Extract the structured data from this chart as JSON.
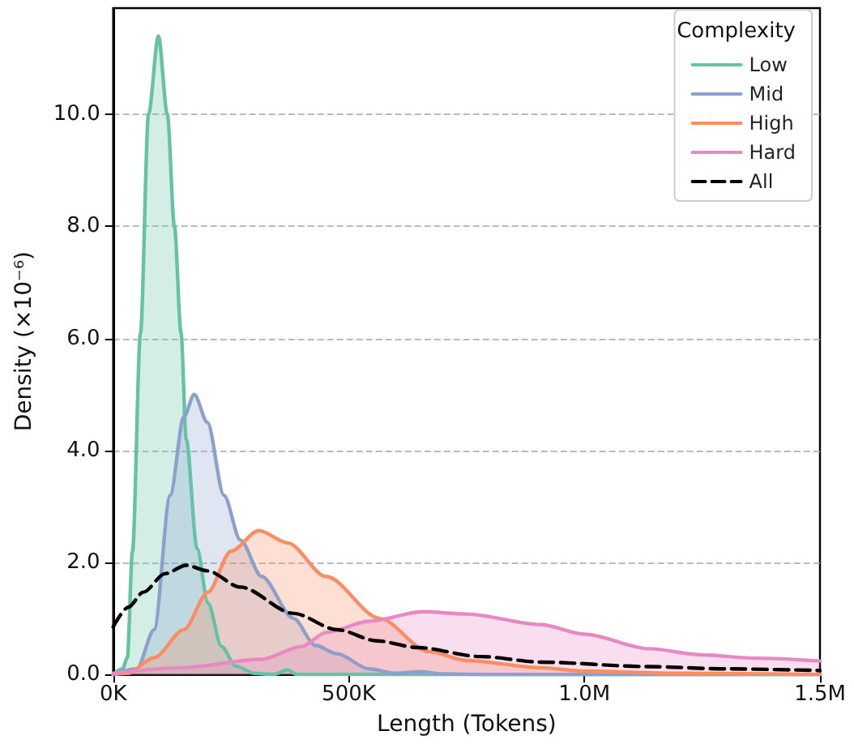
{
  "chart_data": {
    "type": "area",
    "xlabel": "Length (Tokens)",
    "ylabel": "Density (×10⁻⁶)",
    "legend_title": "Complexity",
    "legend": "top right",
    "grid": "y",
    "marker": "none",
    "xlim": [
      0,
      1500000
    ],
    "xticks": [
      {
        "value": 0,
        "label": "0K"
      },
      {
        "value": 500000,
        "label": "500K"
      },
      {
        "value": 1000000,
        "label": "1.0M"
      },
      {
        "value": 1500000,
        "label": "1.5M"
      }
    ],
    "ylim": [
      0,
      11.9
    ],
    "yticks": [
      {
        "value": 0,
        "label": "0.0"
      },
      {
        "value": 2,
        "label": "2.0"
      },
      {
        "value": 4,
        "label": "4.0"
      },
      {
        "value": 6,
        "label": "6.0"
      },
      {
        "value": 8,
        "label": "8.0"
      },
      {
        "value": 10,
        "label": "10.0"
      }
    ],
    "series": [
      {
        "name": "Low",
        "color": "#66c2a5",
        "x": [
          0,
          20000,
          30000,
          41000,
          58000,
          75000,
          96000,
          115000,
          130000,
          144000,
          155000,
          178000,
          201000,
          230000,
          260000,
          300000,
          340000,
          370000,
          390000,
          500000,
          1000000,
          1500000
        ],
        "values": [
          0,
          0.1,
          0.3,
          2.2,
          6.1,
          10.0,
          11.4,
          10.0,
          8.0,
          6.1,
          4.2,
          2.25,
          1.28,
          0.5,
          0.15,
          0.02,
          0,
          0.08,
          0,
          0,
          0,
          0
        ]
      },
      {
        "name": "Mid",
        "color": "#8da0cb",
        "x": [
          0,
          50000,
          87000,
          121000,
          150000,
          172000,
          200000,
          235000,
          270000,
          315000,
          383000,
          429000,
          475000,
          543000,
          600000,
          650000,
          700000,
          800000,
          1500000
        ],
        "values": [
          0,
          0.1,
          0.8,
          3.2,
          4.6,
          5.0,
          4.5,
          3.2,
          2.4,
          1.75,
          1.0,
          0.52,
          0.37,
          0.1,
          0.02,
          0.05,
          0.01,
          0,
          0
        ]
      },
      {
        "name": "High",
        "color": "#fc8d62",
        "x": [
          0,
          30000,
          87000,
          150000,
          201000,
          250000,
          309000,
          370000,
          452000,
          566000,
          669000,
          750000,
          908000,
          1000000,
          1200000,
          1500000
        ],
        "values": [
          0,
          0.02,
          0.3,
          0.8,
          1.47,
          2.2,
          2.57,
          2.35,
          1.75,
          1.0,
          0.41,
          0.25,
          0.12,
          0.06,
          0.02,
          0
        ]
      },
      {
        "name": "Hard",
        "color": "#e78ac3",
        "x": [
          0,
          144000,
          315000,
          400000,
          452000,
          543000,
          657000,
          750000,
          908000,
          1000000,
          1137000,
          1250000,
          1365000,
          1500000
        ],
        "values": [
          0.02,
          0.12,
          0.27,
          0.5,
          0.75,
          0.95,
          1.12,
          1.08,
          0.89,
          0.72,
          0.46,
          0.35,
          0.29,
          0.24
        ]
      },
      {
        "name": "All",
        "color": "#000000",
        "type": "line",
        "line_style": "dashed",
        "x": [
          0,
          32000,
          64000,
          110000,
          155000,
          200000,
          270000,
          383000,
          475000,
          560000,
          646000,
          780000,
          908000,
          1137000,
          1300000,
          1500000
        ],
        "values": [
          0.85,
          1.2,
          1.47,
          1.8,
          1.95,
          1.85,
          1.56,
          1.09,
          0.8,
          0.6,
          0.48,
          0.32,
          0.22,
          0.14,
          0.1,
          0.07
        ]
      }
    ]
  }
}
